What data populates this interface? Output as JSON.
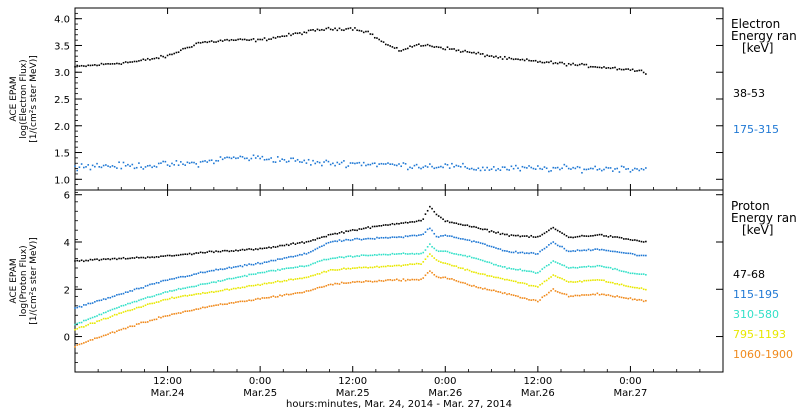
{
  "x_axis_label": "hours:minutes, Mar. 24, 2014 - Mar. 27, 2014",
  "chart_data": [
    {
      "type": "scatter",
      "panel": "electron",
      "ylabel_lines": [
        "ACE EPAM",
        "log(Electron Flux)",
        "[1/(cm²s ster MeV)]"
      ],
      "legend_title": [
        "Electron",
        "Energy ran",
        "[keV]"
      ],
      "ylim": [
        0.8,
        4.2
      ],
      "yticks": [
        1.0,
        1.5,
        2.0,
        2.5,
        3.0,
        3.5,
        4.0
      ],
      "ytick_labels": [
        "1.0",
        "1.5",
        "2.0",
        "2.5",
        "3.0",
        "3.5",
        "4.0"
      ],
      "xlim_hours": [
        0,
        84
      ],
      "xticks": [
        {
          "hours": 12,
          "label_top": "12:00",
          "label_bottom": "Mar.24"
        },
        {
          "hours": 24,
          "label_top": "0:00",
          "label_bottom": "Mar.25"
        },
        {
          "hours": 36,
          "label_top": "12:00",
          "label_bottom": "Mar.25"
        },
        {
          "hours": 48,
          "label_top": "0:00",
          "label_bottom": "Mar.26"
        },
        {
          "hours": 60,
          "label_top": "12:00",
          "label_bottom": "Mar.26"
        },
        {
          "hours": 72,
          "label_top": "0:00",
          "label_bottom": "Mar.27"
        }
      ],
      "series": [
        {
          "name": "38-53",
          "color": "#000000",
          "scatter": 0.04,
          "x": [
            0,
            4,
            8,
            12,
            16,
            20,
            24,
            28,
            32,
            36,
            38,
            40,
            42,
            44,
            46,
            48,
            52,
            56,
            60,
            64,
            68,
            72,
            74
          ],
          "y": [
            3.1,
            3.15,
            3.2,
            3.3,
            3.55,
            3.6,
            3.6,
            3.7,
            3.8,
            3.82,
            3.75,
            3.55,
            3.4,
            3.5,
            3.5,
            3.45,
            3.35,
            3.25,
            3.2,
            3.15,
            3.1,
            3.05,
            3.0
          ]
        },
        {
          "name": "175-315",
          "color": "#1f78d4",
          "scatter": 0.09,
          "x": [
            0,
            8,
            16,
            20,
            24,
            28,
            32,
            36,
            40,
            44,
            48,
            52,
            56,
            60,
            64,
            68,
            72,
            74
          ],
          "y": [
            1.25,
            1.25,
            1.3,
            1.4,
            1.4,
            1.35,
            1.3,
            1.3,
            1.28,
            1.25,
            1.25,
            1.2,
            1.2,
            1.2,
            1.2,
            1.2,
            1.2,
            1.2
          ]
        }
      ]
    },
    {
      "type": "scatter",
      "panel": "proton",
      "ylabel_lines": [
        "ACE EPAM",
        "log(Proton Flux)",
        "[1/(cm²s ster MeV)]"
      ],
      "legend_title": [
        "Proton",
        "Energy ran",
        "[keV]"
      ],
      "ylim": [
        -1.5,
        6.2
      ],
      "yticks": [
        0,
        2,
        4,
        6
      ],
      "ytick_labels": [
        "0",
        "2",
        "4",
        "6"
      ],
      "xlim_hours": [
        0,
        84
      ],
      "series": [
        {
          "name": "47-68",
          "color": "#000000",
          "scatter": 0.05,
          "x": [
            0,
            6,
            12,
            18,
            24,
            30,
            33,
            36,
            42,
            45,
            46,
            47,
            48,
            52,
            56,
            60,
            62,
            64,
            68,
            72,
            74
          ],
          "y": [
            3.2,
            3.3,
            3.4,
            3.6,
            3.7,
            4.0,
            4.3,
            4.5,
            4.8,
            4.9,
            5.5,
            5.1,
            4.9,
            4.6,
            4.3,
            4.2,
            4.6,
            4.2,
            4.3,
            4.1,
            4.0
          ]
        },
        {
          "name": "115-195",
          "color": "#1f78d4",
          "scatter": 0.05,
          "x": [
            0,
            6,
            12,
            18,
            24,
            30,
            33,
            36,
            42,
            45,
            46,
            47,
            48,
            52,
            56,
            60,
            62,
            64,
            68,
            72,
            74
          ],
          "y": [
            1.2,
            1.8,
            2.4,
            2.8,
            3.1,
            3.5,
            4.0,
            4.1,
            4.2,
            4.3,
            4.6,
            4.2,
            4.3,
            4.0,
            3.6,
            3.5,
            4.0,
            3.6,
            3.7,
            3.5,
            3.4
          ]
        },
        {
          "name": "310-580",
          "color": "#33e0c8",
          "scatter": 0.04,
          "x": [
            0,
            6,
            12,
            18,
            24,
            30,
            33,
            36,
            42,
            45,
            46,
            47,
            48,
            52,
            56,
            60,
            62,
            64,
            68,
            72,
            74
          ],
          "y": [
            0.5,
            1.3,
            1.9,
            2.3,
            2.7,
            3.0,
            3.3,
            3.4,
            3.5,
            3.5,
            3.9,
            3.6,
            3.6,
            3.3,
            2.9,
            2.7,
            3.2,
            2.9,
            3.0,
            2.7,
            2.6
          ]
        },
        {
          "name": "795-1193",
          "color": "#e8e800",
          "scatter": 0.04,
          "x": [
            0,
            6,
            12,
            18,
            24,
            30,
            33,
            36,
            42,
            45,
            46,
            47,
            48,
            52,
            56,
            60,
            62,
            64,
            68,
            72,
            74
          ],
          "y": [
            0.3,
            1.0,
            1.6,
            1.9,
            2.2,
            2.5,
            2.8,
            2.9,
            3.0,
            3.1,
            3.5,
            3.2,
            3.1,
            2.7,
            2.4,
            2.1,
            2.6,
            2.3,
            2.4,
            2.1,
            2.0
          ]
        },
        {
          "name": "1060-1900",
          "color": "#f08a1c",
          "scatter": 0.05,
          "x": [
            0,
            6,
            12,
            18,
            24,
            30,
            33,
            36,
            42,
            45,
            46,
            47,
            48,
            52,
            56,
            60,
            62,
            64,
            68,
            72,
            74
          ],
          "y": [
            -0.4,
            0.3,
            0.9,
            1.3,
            1.6,
            1.9,
            2.2,
            2.3,
            2.4,
            2.4,
            2.8,
            2.5,
            2.5,
            2.1,
            1.8,
            1.5,
            2.0,
            1.7,
            1.8,
            1.6,
            1.5
          ]
        }
      ]
    }
  ]
}
